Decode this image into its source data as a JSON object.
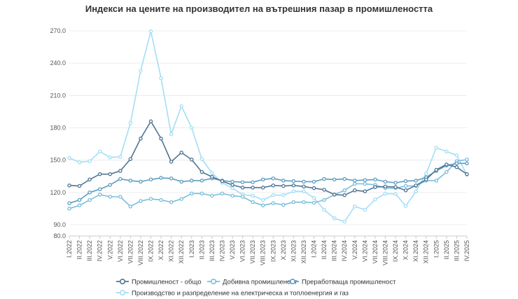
{
  "chart_data": {
    "type": "line",
    "title": "Индекси на цените на производител на вътрешния пазар в промишлеността",
    "xlabel": "",
    "ylabel": "",
    "ylim": [
      80,
      275
    ],
    "y_ticks": [
      80.0,
      90.0,
      120.0,
      150.0,
      180.0,
      210.0,
      240.0,
      270.0
    ],
    "y_tick_labels": [
      "80.0",
      "90.0",
      "120.0",
      "150.0",
      "180.0",
      "210.0",
      "240.0",
      "270.0"
    ],
    "grid": true,
    "legend_position": "bottom",
    "categories": [
      "I.2022",
      "II.2022",
      "III.2022",
      "IV.2022",
      "V.2022",
      "VI.2022",
      "VII.2022",
      "VIII.2022",
      "IX.2022",
      "X.2022",
      "XI.2022",
      "XII.2022",
      "I.2023",
      "II.2023",
      "III.2023",
      "IV.2023",
      "V.2023",
      "VI.2023",
      "VII.2023",
      "VIII.2023",
      "IX.2023",
      "X.2023",
      "XI.2023",
      "XII.2023",
      "I.2024",
      "II.2024",
      "III.2024",
      "IV.2024",
      "V.2024",
      "VI.2024",
      "VII.2024",
      "VIII.2024",
      "IX.2024",
      "X.2024",
      "XI.2024",
      "XII.2024",
      "I.2025",
      "II.2025",
      "III.2025",
      "IV.2025"
    ],
    "series": [
      {
        "name": "Промишленост - общо",
        "color": "#4f7596",
        "values": [
          126.5,
          126,
          132,
          137,
          137,
          140,
          151,
          170,
          186,
          170,
          148.5,
          157,
          150.5,
          139,
          134.5,
          130.5,
          127,
          124.5,
          124.5,
          124.5,
          126.5,
          126,
          126.5,
          125.5,
          124,
          122.5,
          118,
          117.5,
          122,
          121,
          125,
          125.5,
          125,
          122,
          126.5,
          132,
          141,
          146,
          143.5,
          137
        ]
      },
      {
        "name": "Добивна промишленост",
        "color": "#79bedb",
        "values": [
          105,
          108,
          113,
          118,
          116,
          116,
          107,
          112,
          114,
          113,
          111,
          114,
          119,
          119,
          117,
          119,
          117,
          116,
          111,
          108,
          110,
          108.5,
          111,
          111,
          110.5,
          113,
          118,
          122,
          128,
          128,
          127,
          124,
          124,
          126,
          126,
          131,
          131,
          139,
          149,
          150.5
        ]
      },
      {
        "name": "Преработваща промишленост",
        "color": "#5c9ec1",
        "values": [
          110,
          113,
          120,
          123,
          127,
          132.5,
          131,
          130,
          132,
          133.5,
          133,
          130,
          131,
          131,
          133,
          131,
          130,
          129.5,
          129.5,
          132,
          133,
          131,
          130.5,
          130,
          130,
          132.5,
          132,
          132.5,
          131,
          131.5,
          132,
          130,
          129,
          130.5,
          131,
          134,
          140,
          145,
          147,
          147
        ]
      },
      {
        "name": "Производство и разпределение на електрическа и топлоенергия и газ",
        "color": "#a3def5",
        "values": [
          152,
          148,
          149,
          158,
          152.5,
          153,
          184.5,
          233,
          269.5,
          226,
          174,
          200,
          180,
          151,
          138,
          129,
          124,
          118,
          117,
          113,
          117.5,
          117.5,
          121,
          121,
          115,
          104,
          96,
          93,
          107,
          104,
          113.5,
          119,
          118.5,
          107.5,
          121,
          137.5,
          161.5,
          158,
          154.5,
          136.5
        ]
      }
    ]
  }
}
